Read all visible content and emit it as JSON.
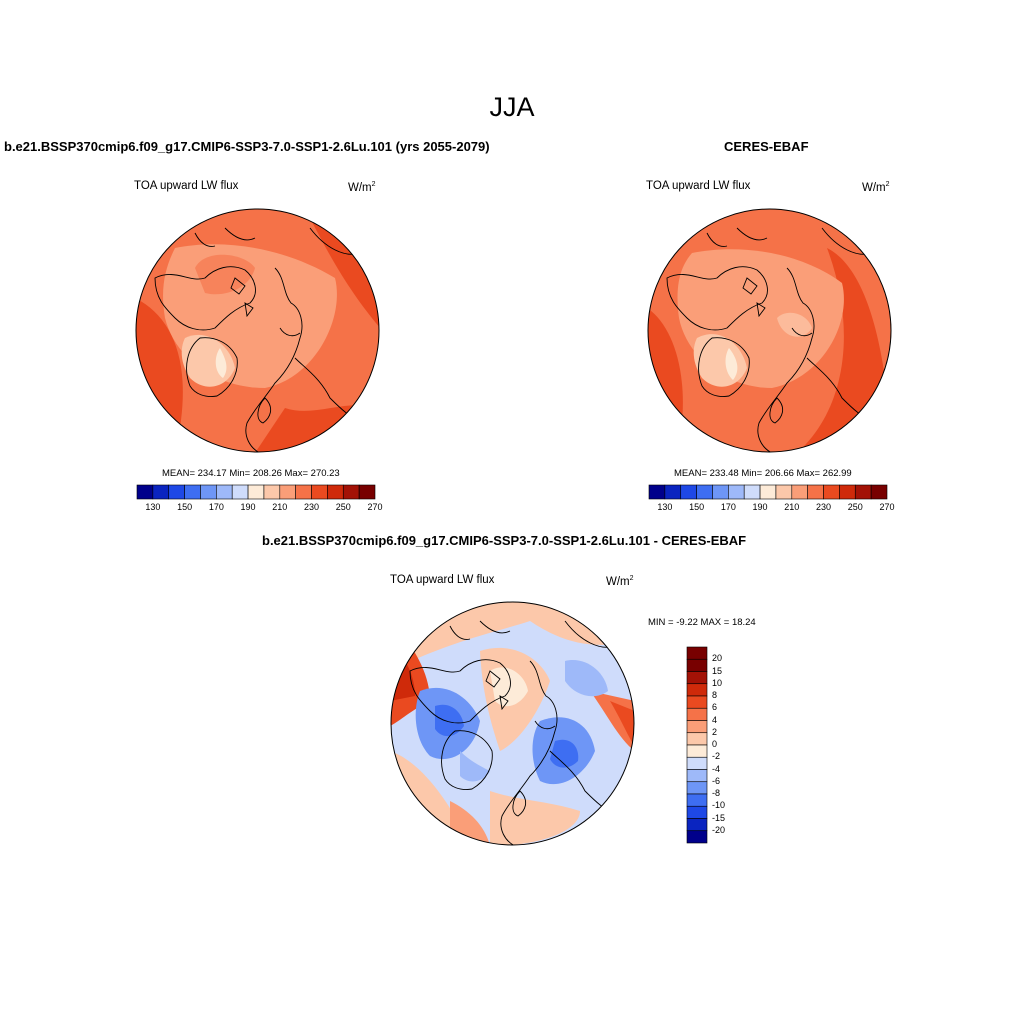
{
  "season": "JJA",
  "panels": [
    {
      "title": "b.e21.BSSP370cmip6.f09_g17.CMIP6-SSP3-7.0-SSP1-2.6Lu.101 (yrs 2055-2079)",
      "variable": "TOA upward LW flux",
      "units": "W/m",
      "units_sup": "2",
      "stats": "MEAN= 234.17  Min= 208.26  Max= 270.23"
    },
    {
      "title": "CERES-EBAF",
      "variable": "TOA upward LW flux",
      "units": "W/m",
      "units_sup": "2",
      "stats": "MEAN= 233.48  Min= 206.66  Max= 262.99"
    },
    {
      "title": "b.e21.BSSP370cmip6.f09_g17.CMIP6-SSP3-7.0-SSP1-2.6Lu.101 - CERES-EBAF",
      "variable": "TOA upward LW flux",
      "units": "W/m",
      "units_sup": "2",
      "stats": "MIN =  -9.22 MAX =  18.24"
    }
  ],
  "colorbar_abs": {
    "labels": [
      "130",
      "150",
      "170",
      "190",
      "210",
      "230",
      "250",
      "270"
    ],
    "colors": [
      "#00008b",
      "#0a24c0",
      "#1e48e6",
      "#3e6ef2",
      "#6e96f6",
      "#9eb9f9",
      "#cfdcfb",
      "#fdebd8",
      "#fcc8aa",
      "#fa9e78",
      "#f57248",
      "#ea4a20",
      "#cf2a0a",
      "#a31206",
      "#780000"
    ]
  },
  "colorbar_diff": {
    "labels": [
      "20",
      "15",
      "10",
      "8",
      "6",
      "4",
      "2",
      "0",
      "-2",
      "-4",
      "-6",
      "-8",
      "-10",
      "-15",
      "-20"
    ],
    "colors": [
      "#780000",
      "#a31206",
      "#cf2a0a",
      "#ea4a20",
      "#f57248",
      "#fa9e78",
      "#fcc8aa",
      "#fdebd8",
      "#cfdcfb",
      "#9eb9f9",
      "#6e96f6",
      "#3e6ef2",
      "#1e48e6",
      "#0a24c0",
      "#00008b"
    ]
  }
}
